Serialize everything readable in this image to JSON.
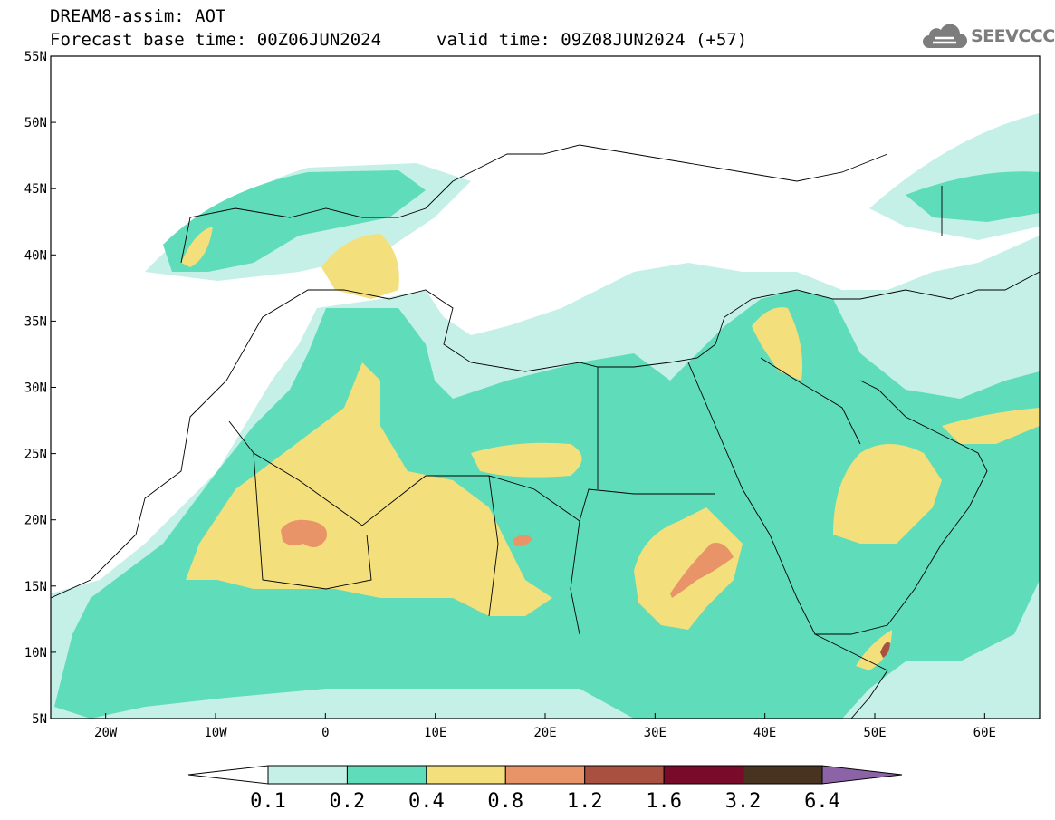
{
  "header": {
    "title_line1": "DREAM8-assim: AOT",
    "title_line2": "Forecast base time: 00Z06JUN2024",
    "valid_time": "valid time: 09Z08JUN2024 (+57)"
  },
  "logo": {
    "text": "SEEVCCC",
    "icon": "cloud-icon"
  },
  "map": {
    "lat_labels": [
      "55N",
      "50N",
      "45N",
      "40N",
      "35N",
      "30N",
      "25N",
      "20N",
      "15N",
      "10N",
      "5N"
    ],
    "lon_labels": [
      "20W",
      "10W",
      "0",
      "10E",
      "20E",
      "30E",
      "40E",
      "50E",
      "60E"
    ],
    "lat_range": [
      5,
      55
    ],
    "lon_range": [
      -25,
      65
    ]
  },
  "colorbar": {
    "levels": [
      "0.1",
      "0.2",
      "0.4",
      "0.8",
      "1.2",
      "1.6",
      "3.2",
      "6.4"
    ],
    "colors": [
      "#c4f0e8",
      "#5fdcb9",
      "#f3e07d",
      "#e99369",
      "#aa5041",
      "#7a0a2a",
      "#47331f"
    ],
    "below_color": "#ffffff",
    "above_color": "#8d63a8"
  }
}
